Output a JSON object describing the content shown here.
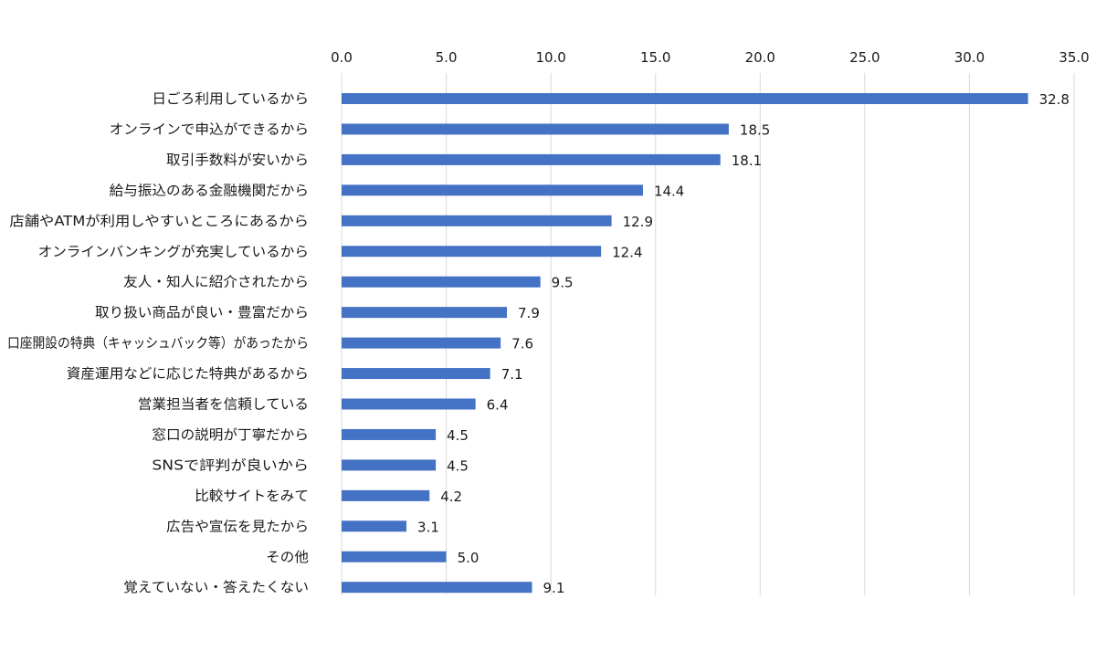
{
  "chart_data": {
    "type": "bar",
    "orientation": "horizontal",
    "title": "",
    "xlabel": "",
    "ylabel": "",
    "xlim": [
      0,
      35
    ],
    "ticks": [
      0,
      5,
      10,
      15,
      20,
      25,
      30,
      35
    ],
    "tick_labels": [
      "0.0",
      "5.0",
      "10.0",
      "15.0",
      "20.0",
      "25.0",
      "30.0",
      "35.0"
    ],
    "axis_position": "top",
    "grid": true,
    "legend": "none",
    "bar_color": "#4472C4",
    "categories": [
      "日ごろ利用しているから",
      "オンラインで申込ができるから",
      "取引手数料が安いから",
      "給与振込のある金融機関だから",
      "店舗やATMが利用しやすいところにあるから",
      "オンラインバンキングが充実しているから",
      "友人・知人に紹介されたから",
      "取り扱い商品が良い・豊富だから",
      "口座開設の特典（キャッシュバック等）があったから",
      "資産運用などに応じた特典があるから",
      "営業担当者を信頼している",
      "窓口の説明が丁寧だから",
      "SNSで評判が良いから",
      "比較サイトをみて",
      "広告や宣伝を見たから",
      "その他",
      "覚えていない・答えたくない"
    ],
    "values": [
      32.8,
      18.5,
      18.1,
      14.4,
      12.9,
      12.4,
      9.5,
      7.9,
      7.6,
      7.1,
      6.4,
      4.5,
      4.5,
      4.2,
      3.1,
      5.0,
      9.1
    ],
    "value_labels": [
      "32.8",
      "18.5",
      "18.1",
      "14.4",
      "12.9",
      "12.4",
      "9.5",
      "7.9",
      "7.6",
      "7.1",
      "6.4",
      "4.5",
      "4.5",
      "4.2",
      "3.1",
      "5.0",
      "9.1"
    ]
  }
}
